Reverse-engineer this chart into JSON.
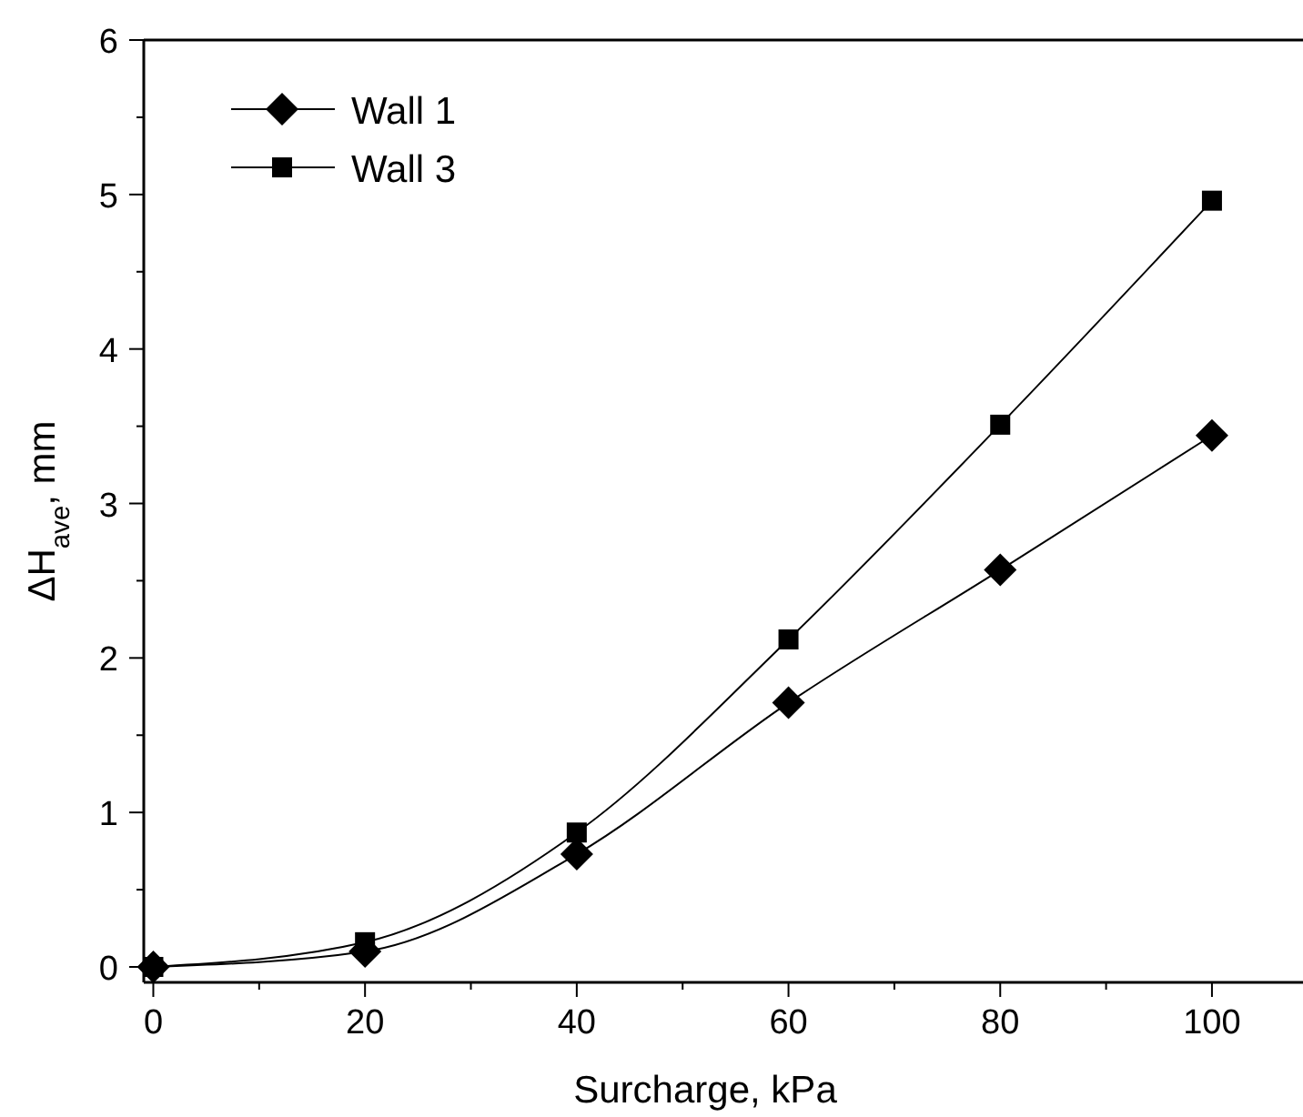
{
  "chart_data": {
    "type": "line",
    "xlabel": "Surcharge, kPa",
    "ylabel": "ΔH$_{ave}$, mm",
    "x": [
      0,
      20,
      40,
      60,
      80,
      100
    ],
    "series": [
      {
        "name": "Wall 1",
        "color": "#000000",
        "marker": "diamond",
        "values": [
          0,
          0.1,
          0.73,
          1.71,
          2.57,
          3.44
        ]
      },
      {
        "name": "Wall 3",
        "color": "#000000",
        "marker": "square",
        "values": [
          0,
          0.16,
          0.87,
          2.12,
          3.51,
          4.96
        ]
      }
    ],
    "xlim": [
      -0.9,
      108.6
    ],
    "ylim": [
      -0.1,
      6
    ],
    "xticks": [
      0,
      {
        "value": 10,
        "label": null
      },
      20,
      {
        "value": 30,
        "label": null
      },
      40,
      {
        "value": 50,
        "label": null
      },
      60,
      {
        "value": 70,
        "label": null
      },
      80,
      {
        "value": 90,
        "label": null
      },
      100
    ],
    "yticks": [
      0,
      {
        "value": 0.5,
        "label": null
      },
      1,
      {
        "value": 1.5,
        "label": null
      },
      2,
      {
        "value": 2.5,
        "label": null
      },
      3,
      {
        "value": 3.5,
        "label": null
      },
      4,
      {
        "value": 4.5,
        "label": null
      },
      5,
      {
        "value": 5.5,
        "label": null
      },
      6
    ],
    "grid": false,
    "legend": "top left",
    "line_style": "solid"
  }
}
